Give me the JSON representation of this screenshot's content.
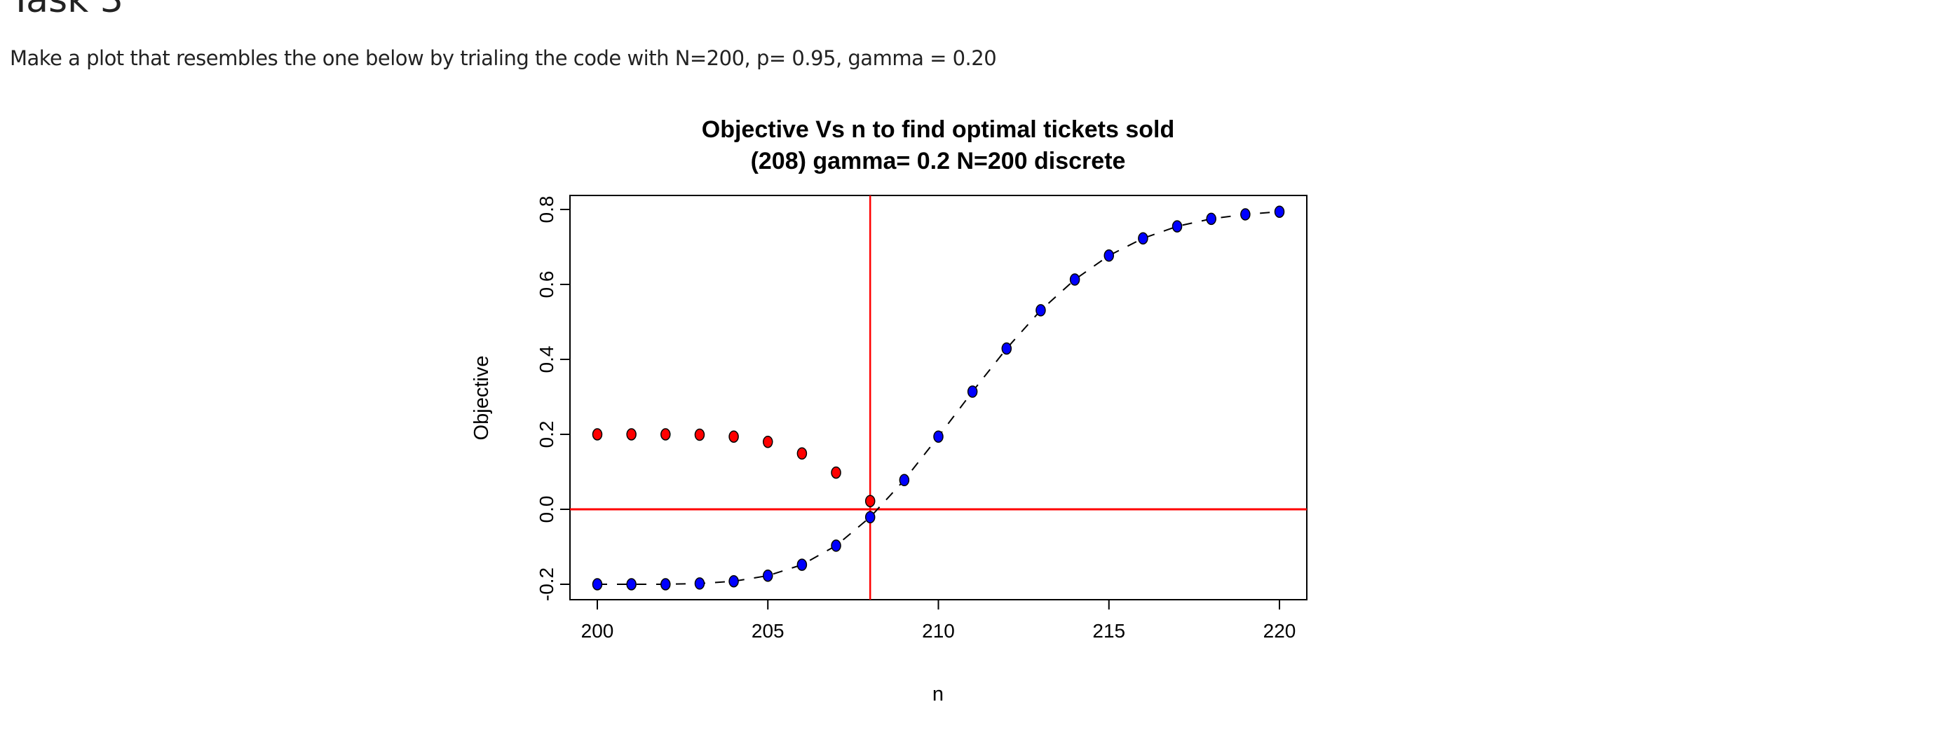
{
  "heading": "Task 3",
  "instruction": "Make a plot that resembles the one below by trialing the code with N=200, p= 0.95, gamma = 0.20",
  "chart_data": {
    "type": "scatter",
    "title": "Objective Vs n to find optimal tickets sold",
    "subtitle": "(208) gamma= 0.2 N=200 discrete",
    "xlabel": "n",
    "ylabel": "Objective",
    "xlim": [
      199.2,
      220.5
    ],
    "ylim": [
      -0.24,
      0.84
    ],
    "xticks": [
      200,
      205,
      210,
      215,
      220
    ],
    "yticks": [
      -0.2,
      0.0,
      0.2,
      0.4,
      0.6,
      0.8
    ],
    "ytick_labels": [
      "-0.2",
      "0.0",
      "0.2",
      "0.4",
      "0.6",
      "0.8"
    ],
    "grid": false,
    "series": [
      {
        "color": "#0000ff",
        "line": "dashed",
        "x": [
          200,
          201,
          202,
          203,
          204,
          205,
          206,
          207,
          208,
          209,
          210,
          211,
          212,
          213,
          214,
          215,
          216,
          217,
          218,
          219,
          220
        ],
        "y": [
          -0.2,
          -0.2,
          -0.2,
          -0.198,
          -0.192,
          -0.177,
          -0.148,
          -0.097,
          -0.021,
          0.078,
          0.194,
          0.314,
          0.429,
          0.531,
          0.613,
          0.677,
          0.723,
          0.755,
          0.775,
          0.787,
          0.794
        ]
      },
      {
        "color": "#ff0000",
        "line": "none",
        "x": [
          200,
          201,
          202,
          203,
          204,
          205,
          206,
          207,
          208
        ],
        "y": [
          0.2,
          0.2,
          0.2,
          0.199,
          0.194,
          0.18,
          0.149,
          0.098,
          0.022
        ]
      }
    ],
    "reference_lines": {
      "vertical_x": 208,
      "horizontal_y": 0,
      "color": "#ff0000"
    }
  }
}
